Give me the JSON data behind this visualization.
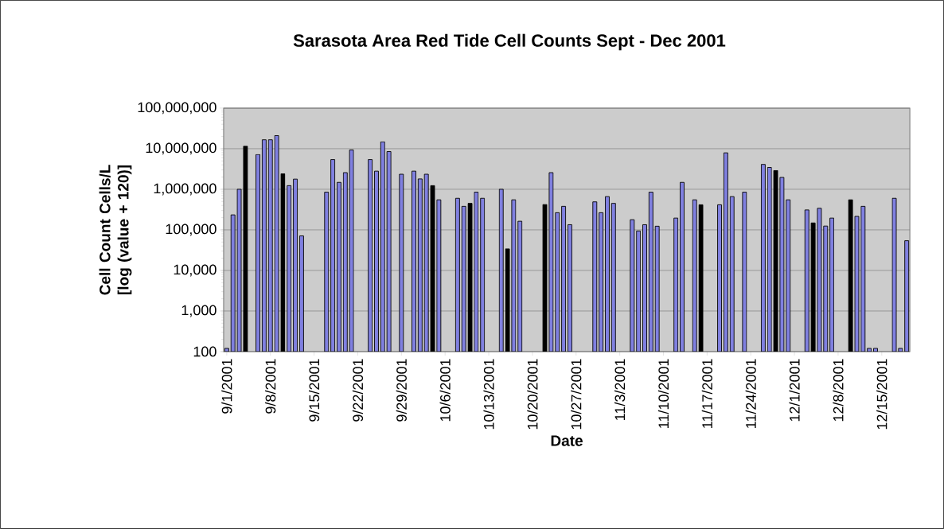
{
  "chart_data": {
    "type": "bar",
    "title": "Sarasota Area Red Tide Cell Counts Sept - Dec 2001",
    "xlabel": "Date",
    "ylabel": "Cell Count Cells/L [log (value + 120)]",
    "x": [
      "2001-09-01",
      "2001-09-02",
      "2001-09-03",
      "2001-09-04",
      "2001-09-06",
      "2001-09-07",
      "2001-09-08",
      "2001-09-09",
      "2001-09-10",
      "2001-09-11",
      "2001-09-12",
      "2001-09-13",
      "2001-09-17",
      "2001-09-18",
      "2001-09-19",
      "2001-09-20",
      "2001-09-21",
      "2001-09-24",
      "2001-09-25",
      "2001-09-26",
      "2001-09-27",
      "2001-09-29",
      "2001-10-01",
      "2001-10-02",
      "2001-10-03",
      "2001-10-04",
      "2001-10-05",
      "2001-10-08",
      "2001-10-09",
      "2001-10-10",
      "2001-10-11",
      "2001-10-12",
      "2001-10-15",
      "2001-10-16",
      "2001-10-17",
      "2001-10-18",
      "2001-10-22",
      "2001-10-23",
      "2001-10-24",
      "2001-10-25",
      "2001-10-26",
      "2001-10-30",
      "2001-10-31",
      "2001-11-01",
      "2001-11-02",
      "2001-11-05",
      "2001-11-06",
      "2001-11-07",
      "2001-11-08",
      "2001-11-09",
      "2001-11-12",
      "2001-11-13",
      "2001-11-15",
      "2001-11-16",
      "2001-11-19",
      "2001-11-20",
      "2001-11-21",
      "2001-11-23",
      "2001-11-26",
      "2001-11-27",
      "2001-11-28",
      "2001-11-29",
      "2001-11-30",
      "2001-12-03",
      "2001-12-04",
      "2001-12-05",
      "2001-12-06",
      "2001-12-07",
      "2001-12-10",
      "2001-12-11",
      "2001-12-12",
      "2001-12-13",
      "2001-12-14",
      "2001-12-17",
      "2001-12-18",
      "2001-12-19"
    ],
    "values": [
      120,
      234000,
      1000000,
      11500000,
      7200000,
      16600000,
      16600000,
      21000000,
      2400000,
      1230000,
      1780000,
      71000,
      850000,
      5400000,
      1480000,
      2570000,
      9300000,
      5400000,
      2800000,
      14800000,
      8500000,
      2350000,
      2800000,
      1800000,
      2350000,
      1230000,
      550000,
      600000,
      380000,
      450000,
      850000,
      600000,
      1000000,
      34000,
      550000,
      163000,
      420000,
      2570000,
      265000,
      380000,
      134000,
      490000,
      265000,
      660000,
      450000,
      178000,
      94000,
      134000,
      850000,
      123000,
      195000,
      1480000,
      550000,
      415000,
      415000,
      7900000,
      660000,
      850000,
      4100000,
      3450000,
      2900000,
      1960000,
      550000,
      310000,
      148000,
      340000,
      124000,
      195000,
      550000,
      215000,
      380000,
      120,
      120,
      600000,
      120,
      54000
    ],
    "colors": [
      "#8080e0",
      "#8080e0",
      "#8080e0",
      "#000000",
      "#8080e0",
      "#8080e0",
      "#8080e0",
      "#8080e0",
      "#000000",
      "#8080e0",
      "#8080e0",
      "#8080e0",
      "#8080e0",
      "#8080e0",
      "#8080e0",
      "#8080e0",
      "#8080e0",
      "#8080e0",
      "#8080e0",
      "#8080e0",
      "#8080e0",
      "#8080e0",
      "#8080e0",
      "#8080e0",
      "#8080e0",
      "#000000",
      "#8080e0",
      "#8080e0",
      "#8080e0",
      "#000000",
      "#8080e0",
      "#8080e0",
      "#8080e0",
      "#000000",
      "#8080e0",
      "#8080e0",
      "#000000",
      "#8080e0",
      "#8080e0",
      "#8080e0",
      "#8080e0",
      "#8080e0",
      "#8080e0",
      "#8080e0",
      "#8080e0",
      "#8080e0",
      "#8080e0",
      "#8080e0",
      "#8080e0",
      "#8080e0",
      "#8080e0",
      "#8080e0",
      "#8080e0",
      "#000000",
      "#8080e0",
      "#8080e0",
      "#8080e0",
      "#8080e0",
      "#8080e0",
      "#8080e0",
      "#000000",
      "#8080e0",
      "#8080e0",
      "#8080e0",
      "#000000",
      "#8080e0",
      "#8080e0",
      "#8080e0",
      "#000000",
      "#8080e0",
      "#8080e0",
      "#8080e0",
      "#8080e0",
      "#8080e0",
      "#8080e0",
      "#8080e0"
    ],
    "xlim": [
      "2001-08-31T12:00",
      "2001-12-19T12:00"
    ],
    "xticks": [
      {
        "value": "2001-09-01",
        "label": "9/1/2001"
      },
      {
        "value": "2001-09-08",
        "label": "9/8/2001"
      },
      {
        "value": "2001-09-15",
        "label": "9/15/2001"
      },
      {
        "value": "2001-09-22",
        "label": "9/22/2001"
      },
      {
        "value": "2001-09-29",
        "label": "9/29/2001"
      },
      {
        "value": "2001-10-06",
        "label": "10/6/2001"
      },
      {
        "value": "2001-10-13",
        "label": "10/13/2001"
      },
      {
        "value": "2001-10-20",
        "label": "10/20/2001"
      },
      {
        "value": "2001-10-27",
        "label": "10/27/2001"
      },
      {
        "value": "2001-11-03",
        "label": "11/3/2001"
      },
      {
        "value": "2001-11-10",
        "label": "11/10/2001"
      },
      {
        "value": "2001-11-17",
        "label": "11/17/2001"
      },
      {
        "value": "2001-11-24",
        "label": "11/24/2001"
      },
      {
        "value": "2001-12-01",
        "label": "12/1/2001"
      },
      {
        "value": "2001-12-08",
        "label": "12/8/2001"
      },
      {
        "value": "2001-12-15",
        "label": "12/15/2001"
      }
    ],
    "ylim": [
      100,
      100000000
    ],
    "yticks": [
      {
        "value": 100,
        "label": "100"
      },
      {
        "value": 1000,
        "label": "1,000"
      },
      {
        "value": 10000,
        "label": "10,000"
      },
      {
        "value": 100000,
        "label": "100,000"
      },
      {
        "value": 1000000,
        "label": "1,000,000"
      },
      {
        "value": 10000000,
        "label": "10,000,000"
      },
      {
        "value": 100000000,
        "label": "100,000,000"
      }
    ],
    "log": "y",
    "grid": "y"
  }
}
